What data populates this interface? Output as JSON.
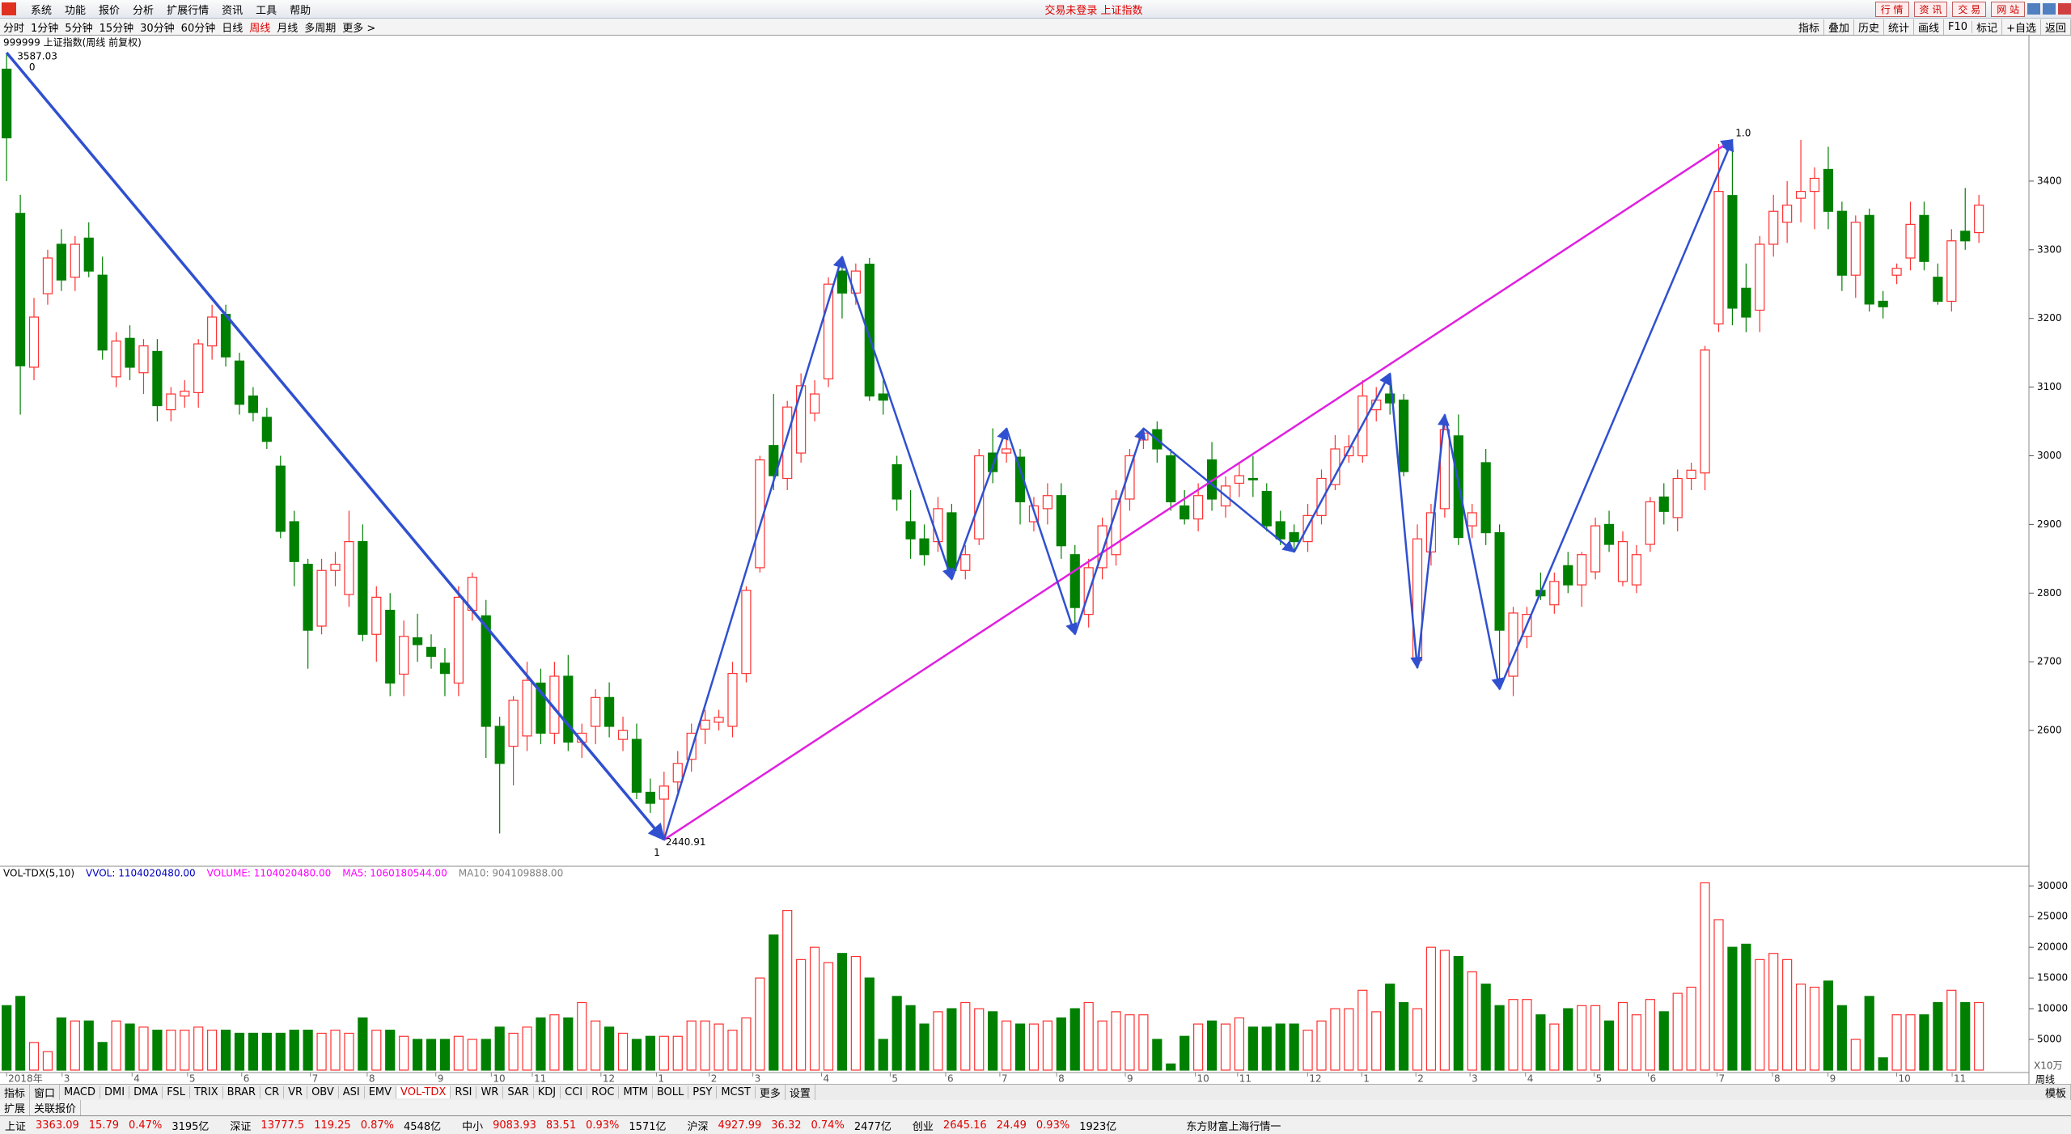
{
  "menu": {
    "items": [
      "系统",
      "功能",
      "报价",
      "分析",
      "扩展行情",
      "资讯",
      "工具",
      "帮助"
    ],
    "title": "交易未登录 上证指数",
    "buttons": [
      "行 情",
      "资 讯",
      "交 易",
      "网 站"
    ]
  },
  "periods": {
    "items": [
      "分时",
      "1分钟",
      "5分钟",
      "15分钟",
      "30分钟",
      "60分钟",
      "日线",
      "周线",
      "月线",
      "多周期",
      "更多 >"
    ],
    "selected": "周线",
    "tools": [
      "指标",
      "叠加",
      "历史",
      "统计",
      "画线",
      "F10",
      "标记",
      "+自选",
      "返回"
    ]
  },
  "chart_header": "999999 上证指数(周线 前复权)",
  "chart_data": [
    {
      "type": "candlestick",
      "up_color": "#ff3030",
      "down_color": "#008000",
      "ylim": [
        2404,
        3606
      ],
      "yticks": [
        2600,
        2700,
        2800,
        2900,
        3000,
        3100,
        3200,
        3300,
        3400
      ],
      "annotations": [
        "3587.03",
        "0",
        "2440.91",
        "1",
        "1.0"
      ],
      "period_label": "周线",
      "x_labels": [
        "2018年",
        "3",
        "4",
        "5",
        "6",
        "7",
        "8",
        "9",
        "10",
        "11",
        "12",
        "1",
        "2",
        "3",
        "4",
        "5",
        "6",
        "7",
        "8",
        "9",
        "10",
        "11",
        "12",
        "1",
        "2",
        "3",
        "4",
        "5",
        "6",
        "7",
        "8",
        "9",
        "10",
        "11"
      ],
      "ohlc": [
        [
          3563,
          3587.03,
          3400,
          3463
        ],
        [
          3353,
          3380,
          3060,
          3131
        ],
        [
          3129,
          3230,
          3110,
          3202
        ],
        [
          3236,
          3300,
          3220,
          3288
        ],
        [
          3308,
          3330,
          3240,
          3256
        ],
        [
          3260,
          3320,
          3240,
          3308
        ],
        [
          3317,
          3340,
          3260,
          3269
        ],
        [
          3263,
          3290,
          3140,
          3154
        ],
        [
          3115,
          3180,
          3100,
          3167
        ],
        [
          3171,
          3190,
          3110,
          3129
        ],
        [
          3121,
          3170,
          3090,
          3160
        ],
        [
          3152,
          3170,
          3050,
          3073
        ],
        [
          3067,
          3100,
          3050,
          3090
        ],
        [
          3087,
          3110,
          3070,
          3094
        ],
        [
          3092,
          3170,
          3070,
          3163
        ],
        [
          3160,
          3220,
          3140,
          3202
        ],
        [
          3206,
          3220,
          3130,
          3144
        ],
        [
          3138,
          3150,
          3060,
          3075
        ],
        [
          3087,
          3100,
          3050,
          3063
        ],
        [
          3056,
          3070,
          3010,
          3021
        ],
        [
          2985,
          3000,
          2880,
          2890
        ],
        [
          2904,
          2920,
          2810,
          2846
        ],
        [
          2842,
          2850,
          2690,
          2746
        ],
        [
          2752,
          2850,
          2740,
          2833
        ],
        [
          2833,
          2860,
          2810,
          2842
        ],
        [
          2798,
          2920,
          2780,
          2875
        ],
        [
          2875,
          2900,
          2730,
          2740
        ],
        [
          2740,
          2810,
          2700,
          2794
        ],
        [
          2775,
          2800,
          2650,
          2669
        ],
        [
          2682,
          2760,
          2650,
          2737
        ],
        [
          2735,
          2770,
          2700,
          2725
        ],
        [
          2721,
          2740,
          2690,
          2708
        ],
        [
          2698,
          2720,
          2650,
          2683
        ],
        [
          2669,
          2810,
          2650,
          2794
        ],
        [
          2775,
          2830,
          2760,
          2823
        ],
        [
          2767,
          2790,
          2560,
          2606
        ],
        [
          2606,
          2620,
          2450,
          2552
        ],
        [
          2577,
          2650,
          2520,
          2644
        ],
        [
          2592,
          2700,
          2570,
          2673
        ],
        [
          2669,
          2690,
          2580,
          2596
        ],
        [
          2596,
          2700,
          2580,
          2679
        ],
        [
          2679,
          2710,
          2570,
          2583
        ],
        [
          2583,
          2610,
          2560,
          2596
        ],
        [
          2606,
          2660,
          2580,
          2648
        ],
        [
          2648,
          2670,
          2590,
          2606
        ],
        [
          2587,
          2620,
          2570,
          2600
        ],
        [
          2587,
          2610,
          2500,
          2510
        ],
        [
          2510,
          2530,
          2480,
          2494
        ],
        [
          2500,
          2540,
          2440.91,
          2519
        ],
        [
          2525,
          2570,
          2510,
          2552
        ],
        [
          2558,
          2610,
          2540,
          2596
        ],
        [
          2602,
          2630,
          2580,
          2615
        ],
        [
          2612,
          2630,
          2600,
          2619
        ],
        [
          2606,
          2700,
          2590,
          2683
        ],
        [
          2683,
          2810,
          2670,
          2804
        ],
        [
          2837,
          3000,
          2830,
          2994
        ],
        [
          3015,
          3090,
          2950,
          2971
        ],
        [
          2967,
          3080,
          2950,
          3071
        ],
        [
          3004,
          3120,
          2990,
          3102
        ],
        [
          3062,
          3110,
          3050,
          3090
        ],
        [
          3112,
          3260,
          3100,
          3250
        ],
        [
          3269,
          3290,
          3200,
          3237
        ],
        [
          3237,
          3280,
          3220,
          3269
        ],
        [
          3279,
          3288,
          3080,
          3087
        ],
        [
          3090,
          3110,
          3060,
          3081
        ],
        [
          2987,
          3000,
          2920,
          2937
        ],
        [
          2904,
          2950,
          2850,
          2879
        ],
        [
          2879,
          2900,
          2840,
          2856
        ],
        [
          2875,
          2940,
          2860,
          2923
        ],
        [
          2917,
          2930,
          2820,
          2833
        ],
        [
          2833,
          2870,
          2820,
          2856
        ],
        [
          2879,
          3010,
          2870,
          3000
        ],
        [
          3004,
          3040,
          2960,
          2977
        ],
        [
          3004,
          3040,
          2990,
          3010
        ],
        [
          2998,
          3010,
          2900,
          2933
        ],
        [
          2904,
          2940,
          2890,
          2927
        ],
        [
          2923,
          2960,
          2900,
          2942
        ],
        [
          2942,
          2960,
          2850,
          2869
        ],
        [
          2856,
          2870,
          2740,
          2779
        ],
        [
          2769,
          2850,
          2750,
          2837
        ],
        [
          2837,
          2910,
          2820,
          2898
        ],
        [
          2856,
          2950,
          2840,
          2937
        ],
        [
          2937,
          3010,
          2920,
          3000
        ],
        [
          3023,
          3040,
          3010,
          3033
        ],
        [
          3038,
          3050,
          2990,
          3010
        ],
        [
          3000,
          3010,
          2920,
          2933
        ],
        [
          2927,
          2950,
          2900,
          2908
        ],
        [
          2908,
          2960,
          2890,
          2942
        ],
        [
          2994,
          3020,
          2920,
          2937
        ],
        [
          2927,
          2970,
          2910,
          2956
        ],
        [
          2960,
          2990,
          2940,
          2971
        ],
        [
          2967,
          3000,
          2940,
          2965
        ],
        [
          2948,
          2960,
          2890,
          2898
        ],
        [
          2904,
          2920,
          2870,
          2879
        ],
        [
          2888,
          2900,
          2860,
          2875
        ],
        [
          2875,
          2930,
          2860,
          2913
        ],
        [
          2913,
          2980,
          2900,
          2967
        ],
        [
          2958,
          3030,
          2950,
          3010
        ],
        [
          3000,
          3030,
          2990,
          3013
        ],
        [
          3000,
          3110,
          2990,
          3087
        ],
        [
          3067,
          3100,
          3050,
          3081
        ],
        [
          3090,
          3120,
          3060,
          3077
        ],
        [
          3081,
          3090,
          2970,
          2977
        ],
        [
          2702,
          2900,
          2691,
          2879
        ],
        [
          2860,
          2930,
          2840,
          2917
        ],
        [
          2923,
          3060,
          2910,
          3038
        ],
        [
          3029,
          3060,
          2870,
          2881
        ],
        [
          2898,
          2930,
          2880,
          2917
        ],
        [
          2990,
          3010,
          2870,
          2888
        ],
        [
          2888,
          2900,
          2660,
          2746
        ],
        [
          2679,
          2780,
          2650,
          2771
        ],
        [
          2737,
          2780,
          2720,
          2769
        ],
        [
          2804,
          2830,
          2790,
          2796
        ],
        [
          2783,
          2830,
          2770,
          2817
        ],
        [
          2840,
          2860,
          2800,
          2812
        ],
        [
          2812,
          2860,
          2780,
          2856
        ],
        [
          2831,
          2910,
          2820,
          2898
        ],
        [
          2900,
          2920,
          2860,
          2871
        ],
        [
          2817,
          2890,
          2810,
          2875
        ],
        [
          2812,
          2870,
          2800,
          2856
        ],
        [
          2871,
          2940,
          2860,
          2933
        ],
        [
          2940,
          2960,
          2900,
          2919
        ],
        [
          2910,
          2980,
          2890,
          2967
        ],
        [
          2967,
          2990,
          2950,
          2979
        ],
        [
          2975,
          3160,
          2950,
          3154
        ],
        [
          3192,
          3454,
          3180,
          3385
        ],
        [
          3379,
          3460,
          3190,
          3215
        ],
        [
          3244,
          3280,
          3180,
          3202
        ],
        [
          3212,
          3320,
          3180,
          3308
        ],
        [
          3308,
          3380,
          3290,
          3356
        ],
        [
          3340,
          3400,
          3310,
          3365
        ],
        [
          3375,
          3460,
          3340,
          3385
        ],
        [
          3385,
          3420,
          3330,
          3404
        ],
        [
          3417,
          3450,
          3330,
          3356
        ],
        [
          3356,
          3370,
          3240,
          3263
        ],
        [
          3263,
          3350,
          3230,
          3340
        ],
        [
          3350,
          3360,
          3210,
          3221
        ],
        [
          3225,
          3240,
          3200,
          3217
        ],
        [
          3263,
          3280,
          3250,
          3273
        ],
        [
          3288,
          3370,
          3270,
          3337
        ],
        [
          3350,
          3370,
          3270,
          3283
        ],
        [
          3260,
          3280,
          3220,
          3225
        ],
        [
          3225,
          3330,
          3210,
          3313
        ],
        [
          3327,
          3390,
          3300,
          3313
        ],
        [
          3325,
          3380,
          3310,
          3365
        ]
      ]
    },
    {
      "type": "bar",
      "ylim": [
        0,
        32800
      ],
      "yticks": [
        5000,
        10000,
        15000,
        20000,
        25000,
        30000
      ],
      "unit": "X10万",
      "legend": [
        {
          "text": "VOL-TDX(5,10)",
          "color": "#000000"
        },
        {
          "text": "VVOL: 1104020480.00",
          "color": "#0000c0"
        },
        {
          "text": "VOLUME: 1104020480.00",
          "color": "#ff00ff"
        },
        {
          "text": "MA5: 1060180544.00",
          "color": "#ff00ff"
        },
        {
          "text": "MA10: 904109888.00",
          "color": "#808080"
        }
      ],
      "values": [
        10500,
        12000,
        4500,
        3000,
        8500,
        8000,
        8000,
        4500,
        8000,
        7500,
        7000,
        6500,
        6500,
        6500,
        7000,
        6500,
        6500,
        6000,
        6000,
        6000,
        6000,
        6500,
        6500,
        6000,
        6500,
        6000,
        8500,
        6500,
        6500,
        5500,
        5000,
        5000,
        5000,
        5500,
        5000,
        5000,
        7000,
        6000,
        7000,
        8500,
        9000,
        8500,
        11000,
        8000,
        7000,
        6000,
        5000,
        5500,
        5500,
        5500,
        8000,
        8000,
        7500,
        6500,
        8500,
        15000,
        22000,
        26000,
        18000,
        20000,
        17500,
        19000,
        18500,
        15000,
        5000,
        12000,
        10500,
        7500,
        9500,
        10000,
        11000,
        10000,
        9500,
        8000,
        7500,
        7500,
        8000,
        8500,
        10000,
        11000,
        8000,
        9500,
        9000,
        9000,
        5000,
        1000,
        5500,
        7500,
        8000,
        7500,
        8500,
        7000,
        7000,
        7500,
        7500,
        6500,
        8000,
        10000,
        10000,
        13000,
        9500,
        14000,
        11000,
        10000,
        20000,
        19500,
        18500,
        16000,
        14000,
        10500,
        11500,
        11500,
        9000,
        7500,
        10000,
        10500,
        10500,
        8000,
        11000,
        9000,
        11500,
        9500,
        12500,
        13500,
        30500,
        24500,
        20000,
        20500,
        18000,
        19000,
        18000,
        14000,
        13500,
        14500,
        10500,
        5000,
        12000,
        2000,
        9000,
        9000,
        9000,
        11000,
        13000,
        11000,
        11000
      ]
    }
  ],
  "tabs": {
    "items": [
      "指标",
      "窗口",
      "MACD",
      "DMI",
      "DMA",
      "FSL",
      "TRIX",
      "BRAR",
      "CR",
      "VR",
      "OBV",
      "ASI",
      "EMV",
      "VOL-TDX",
      "RSI",
      "WR",
      "SAR",
      "KDJ",
      "CCI",
      "ROC",
      "MTM",
      "BOLL",
      "PSY",
      "MCST",
      "更多",
      "设置"
    ],
    "selected": "VOL-TDX",
    "right": "模板",
    "sub": [
      "扩展",
      "关联报价"
    ]
  },
  "ticker": {
    "items": [
      [
        "上证",
        "3363.09",
        "15.79",
        "0.47%",
        "3195亿"
      ],
      [
        "深证",
        "13777.5",
        "119.25",
        "0.87%",
        "4548亿"
      ],
      [
        "中小",
        "9083.93",
        "83.51",
        "0.93%",
        "1571亿"
      ],
      [
        "沪深",
        "4927.99",
        "36.32",
        "0.74%",
        "2477亿"
      ],
      [
        "创业",
        "2645.16",
        "24.49",
        "0.93%",
        "1923亿"
      ]
    ],
    "feed": "东方财富上海行情一"
  }
}
